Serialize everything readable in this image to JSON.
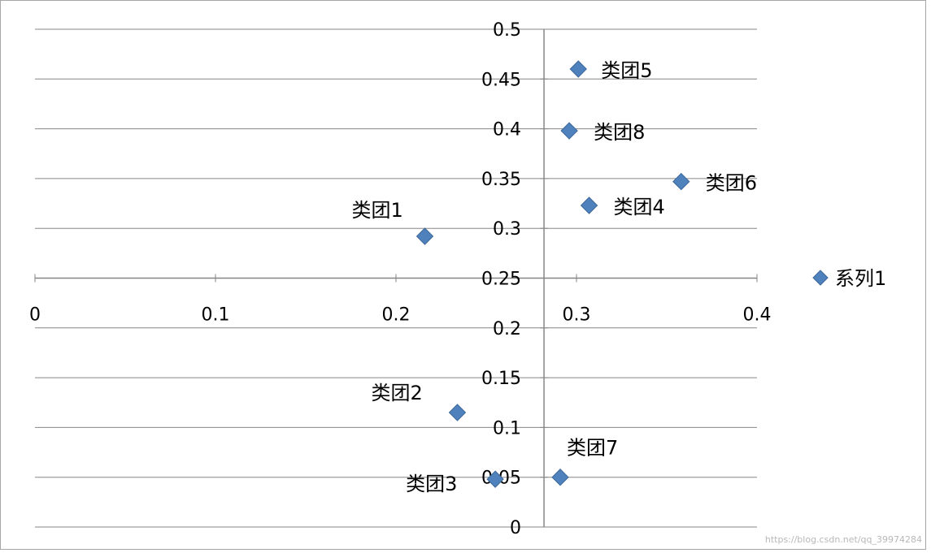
{
  "chart_data": {
    "type": "scatter",
    "title": "",
    "xlabel": "",
    "ylabel": "",
    "xlim": [
      0,
      0.4
    ],
    "ylim": [
      0,
      0.5
    ],
    "x_ticks": [
      "0",
      "0.1",
      "0.2",
      "0.3",
      "0.4"
    ],
    "y_ticks": [
      "0",
      "0.05",
      "0.1",
      "0.15",
      "0.2",
      "0.25",
      "0.3",
      "0.35",
      "0.4",
      "0.45",
      "0.5"
    ],
    "x_axis_crosses_y_at": 0.25,
    "y_axis_crosses_x_at": 0.282,
    "grid": "horizontal",
    "legend_position": "right",
    "marker_color": "#4f81bd",
    "series": [
      {
        "name": "系列1",
        "points": [
          {
            "label": "类团1",
            "x": 0.216,
            "y": 0.292
          },
          {
            "label": "类团2",
            "x": 0.234,
            "y": 0.115
          },
          {
            "label": "类团3",
            "x": 0.255,
            "y": 0.048
          },
          {
            "label": "类团4",
            "x": 0.307,
            "y": 0.323
          },
          {
            "label": "类团5",
            "x": 0.301,
            "y": 0.46
          },
          {
            "label": "类团6",
            "x": 0.358,
            "y": 0.347
          },
          {
            "label": "类团7",
            "x": 0.291,
            "y": 0.05
          },
          {
            "label": "类团8",
            "x": 0.296,
            "y": 0.398
          }
        ]
      }
    ]
  },
  "watermark": "https://blog.csdn.net/qq_39974284"
}
